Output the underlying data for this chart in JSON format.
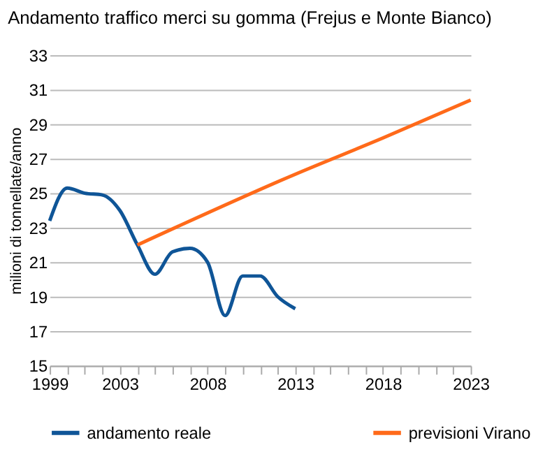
{
  "chart_data": {
    "type": "line",
    "title": "Andamento traffico merci su gomma (Frejus e Monte Bianco)",
    "ylabel": "milioni di tonnellate/anno",
    "xlim": [
      1999,
      2023
    ],
    "ylim": [
      15,
      33
    ],
    "yticks": [
      15,
      17,
      19,
      21,
      23,
      25,
      27,
      29,
      31,
      33
    ],
    "xticks": [
      1999,
      {
        "value": 2000,
        "label": null
      },
      {
        "value": 2001,
        "label": null
      },
      {
        "value": 2002,
        "label": null
      },
      2003,
      {
        "value": 2004,
        "label": null
      },
      {
        "value": 2005,
        "label": null
      },
      {
        "value": 2006,
        "label": null
      },
      {
        "value": 2007,
        "label": null
      },
      2008,
      {
        "value": 2009,
        "label": null
      },
      {
        "value": 2010,
        "label": null
      },
      {
        "value": 2011,
        "label": null
      },
      {
        "value": 2012,
        "label": null
      },
      2013,
      {
        "value": 2014,
        "label": null
      },
      {
        "value": 2015,
        "label": null
      },
      {
        "value": 2016,
        "label": null
      },
      {
        "value": 2017,
        "label": null
      },
      2018,
      {
        "value": 2019,
        "label": null
      },
      {
        "value": 2020,
        "label": null
      },
      {
        "value": 2021,
        "label": null
      },
      {
        "value": 2022,
        "label": null
      },
      2023
    ],
    "grid": "y",
    "legend": "bottom",
    "marker": "none",
    "series": [
      {
        "name": "andamento reale",
        "color": "#0f5597",
        "x": [
          1999,
          2000,
          2001,
          2002,
          2003,
          2004,
          2005,
          2006,
          2007,
          2008,
          2009,
          2010,
          2011,
          2012,
          2013
        ],
        "values": [
          23.4,
          25.3,
          25.0,
          24.9,
          24.0,
          22.0,
          20.3,
          21.6,
          21.8,
          21.0,
          17.9,
          20.2,
          20.2,
          19.0,
          18.3
        ]
      },
      {
        "name": "previsioni Virano",
        "color": "#ff6a1a",
        "x": [
          2004,
          2013,
          2018,
          2023
        ],
        "values": [
          22.0,
          26.1,
          28.2,
          30.4
        ]
      }
    ]
  }
}
